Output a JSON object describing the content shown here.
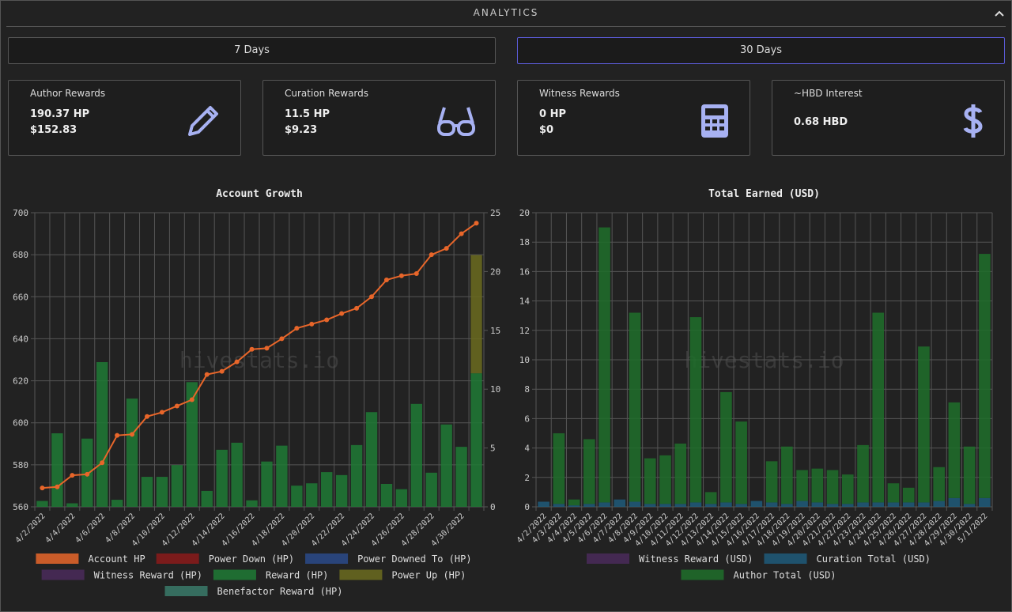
{
  "header": {
    "title": "ANALYTICS"
  },
  "buttons": [
    "7 Days",
    "30 Days"
  ],
  "cards": [
    {
      "title": "Author Rewards",
      "lines": [
        "190.37 HP",
        "$152.83"
      ]
    },
    {
      "title": "Curation Rewards",
      "lines": [
        "11.5 HP",
        "$9.23"
      ]
    },
    {
      "title": "Witness Rewards",
      "lines": [
        "0 HP",
        "$0"
      ]
    },
    {
      "title": "~HBD Interest",
      "lines": [
        "0.68 HBD"
      ]
    }
  ],
  "chart_data": [
    {
      "type": "combo",
      "title": "Account Growth",
      "watermark": "hivestats.io",
      "stacked": true,
      "categories": [
        "4/2/2022",
        null,
        "4/4/2022",
        null,
        "4/6/2022",
        null,
        "4/8/2022",
        null,
        "4/10/2022",
        null,
        "4/12/2022",
        null,
        "4/14/2022",
        null,
        "4/16/2022",
        null,
        "4/18/2022",
        null,
        "4/20/2022",
        null,
        "4/22/2022",
        null,
        "4/24/2022",
        null,
        "4/26/2022",
        null,
        "4/28/2022",
        null,
        "4/30/2022",
        null
      ],
      "ylim": [
        560,
        700
      ],
      "yticks": [
        560,
        580,
        600,
        620,
        640,
        660,
        680,
        700
      ],
      "y2lim": [
        0,
        25
      ],
      "y2ticks": [
        0,
        5,
        10,
        15,
        20,
        25
      ],
      "series": [
        {
          "name": "Account HP",
          "type": "line",
          "color": "#e8662a",
          "values": [
            569,
            569.5,
            575,
            575.5,
            581,
            594,
            594.5,
            603,
            605,
            608,
            611,
            623,
            624.5,
            629,
            635,
            635.5,
            640,
            645,
            647,
            649,
            652,
            654.5,
            660,
            668,
            670,
            671,
            680,
            683,
            690,
            695
          ]
        },
        {
          "name": "Power Down (HP)",
          "type": "bar",
          "axis": "y2",
          "color": "#8b1a1a",
          "values": [
            0,
            0,
            0,
            0,
            0,
            0,
            0,
            0,
            0,
            0,
            0,
            0,
            0,
            0,
            0,
            0,
            0,
            0,
            0,
            0,
            0,
            0,
            0,
            0,
            0,
            0,
            0,
            0,
            0,
            0
          ]
        },
        {
          "name": "Power Downed To (HP)",
          "type": "bar",
          "axis": "y2",
          "color": "#2a4a8a",
          "values": [
            0,
            0,
            0,
            0,
            0,
            0,
            0,
            0,
            0,
            0,
            0,
            0,
            0,
            0,
            0,
            0,
            0,
            0,
            0,
            0,
            0,
            0,
            0,
            0,
            0,
            0,
            0,
            0,
            0,
            0
          ]
        },
        {
          "name": "Witness Reward (HP)",
          "type": "bar",
          "axis": "y2",
          "color": "#4a2a5a",
          "values": [
            0,
            0,
            0,
            0,
            0,
            0,
            0,
            0,
            0,
            0,
            0,
            0,
            0,
            0,
            0,
            0,
            0,
            0,
            0,
            0,
            0,
            0,
            0,
            0,
            0,
            0,
            0,
            0,
            0,
            0
          ]
        },
        {
          "name": "Reward (HP)",
          "type": "bar",
          "axis": "y2",
          "color": "#1f7a35",
          "values": [
            0.5,
            6.25,
            0.3,
            5.8,
            12.3,
            0.6,
            9.2,
            2.55,
            2.55,
            3.55,
            10.6,
            1.35,
            4.85,
            5.45,
            0.55,
            3.85,
            5.2,
            1.8,
            2,
            2.95,
            2.7,
            5.25,
            8.05,
            1.95,
            1.5,
            8.75,
            2.9,
            7,
            5.1,
            11.35
          ]
        },
        {
          "name": "Power Up (HP)",
          "type": "bar",
          "axis": "y2",
          "color": "#6b6b1e",
          "values": [
            0,
            0,
            0,
            0,
            0,
            0,
            0,
            0,
            0,
            0,
            0,
            0,
            0,
            0,
            0,
            0,
            0,
            0,
            0,
            0,
            0,
            0,
            0,
            0,
            0,
            0,
            0,
            0,
            0,
            10.05
          ]
        },
        {
          "name": "Benefactor Reward (HP)",
          "type": "bar",
          "axis": "y2",
          "color": "#3a7a6a",
          "values": [
            0,
            0,
            0,
            0,
            0,
            0,
            0,
            0,
            0,
            0,
            0,
            0,
            0,
            0,
            0,
            0,
            0,
            0,
            0,
            0,
            0,
            0,
            0,
            0,
            0,
            0,
            0,
            0,
            0,
            0
          ]
        }
      ]
    },
    {
      "type": "bar",
      "title": "Total Earned (USD)",
      "watermark": "hivestats.io",
      "stacked": true,
      "categories": [
        "4/2/2022",
        "4/3/2022",
        "4/4/2022",
        "4/5/2022",
        "4/6/2022",
        "4/7/2022",
        "4/8/2022",
        "4/9/2022",
        "4/10/2022",
        "4/11/2022",
        "4/12/2022",
        "4/13/2022",
        "4/14/2022",
        "4/15/2022",
        "4/16/2022",
        "4/17/2022",
        "4/18/2022",
        "4/19/2022",
        "4/20/2022",
        "4/21/2022",
        "4/22/2022",
        "4/23/2022",
        "4/24/2022",
        "4/25/2022",
        "4/26/2022",
        "4/27/2022",
        "4/28/2022",
        "4/29/2022",
        "4/30/2022",
        "5/1/2022"
      ],
      "ylim": [
        0,
        20
      ],
      "yticks": [
        0,
        2,
        4,
        6,
        8,
        10,
        12,
        14,
        16,
        18,
        20
      ],
      "series": [
        {
          "name": "Witness Reward (USD)",
          "type": "bar",
          "color": "#4a2a5a",
          "values": [
            0,
            0,
            0,
            0,
            0,
            0,
            0,
            0,
            0,
            0,
            0,
            0,
            0,
            0,
            0,
            0,
            0,
            0,
            0,
            0,
            0,
            0,
            0,
            0,
            0,
            0,
            0,
            0,
            0,
            0
          ]
        },
        {
          "name": "Curation Total (USD)",
          "type": "bar",
          "color": "#1f5a7a",
          "values": [
            0.35,
            0.2,
            0.1,
            0.2,
            0.3,
            0.5,
            0.35,
            0.2,
            0.2,
            0.2,
            0.3,
            0.2,
            0.3,
            0.2,
            0.4,
            0.3,
            0.2,
            0.4,
            0.3,
            0.2,
            0.2,
            0.3,
            0.3,
            0.3,
            0.3,
            0.3,
            0.4,
            0.6,
            0.2,
            0.6
          ]
        },
        {
          "name": "Author Total (USD)",
          "type": "bar",
          "color": "#1e6e2a",
          "values": [
            0,
            4.8,
            0.4,
            4.4,
            18.7,
            0,
            12.85,
            3.1,
            3.3,
            4.1,
            12.6,
            0.8,
            7.5,
            5.6,
            0,
            2.8,
            3.9,
            2.1,
            2.3,
            2.3,
            2,
            3.9,
            12.9,
            1.3,
            1,
            10.6,
            2.3,
            6.5,
            3.9,
            16.6
          ]
        }
      ]
    }
  ]
}
